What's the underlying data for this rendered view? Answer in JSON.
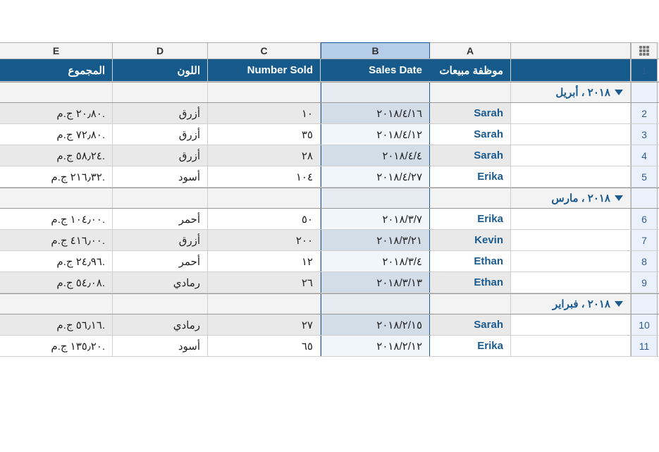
{
  "columns": {
    "letters": [
      "E",
      "D",
      "C",
      "B",
      "A"
    ],
    "selected": "B",
    "widths": {
      "rownum": 38,
      "group": 170,
      "A": 115,
      "B": 155,
      "C": 160,
      "D": 135,
      "E": 160
    }
  },
  "headers": {
    "A": "موظفة مبيعات",
    "B": "Sales Date",
    "C": "Number Sold",
    "D": "اللون",
    "E": "المجموع"
  },
  "colors": {
    "header_bg": "#155a8a",
    "header_text": "#ffffff",
    "selected_col_bg": "#b5cde8",
    "selected_col_border": "#1b5a96",
    "row_num_text": "#2d5c8f",
    "row_num_bg": "#eaf1fa",
    "group_text": "#1a5a8f",
    "group_bg": "#f3f3f3",
    "data_link": "#1a5a8f",
    "even_row_bg": "#e9e9e9",
    "border": "#d0d0d0"
  },
  "groups": [
    {
      "label": "٢٠١٨ ، أبريل",
      "expanded": true,
      "rows": [
        {
          "n": "2",
          "A": "Sarah",
          "B": "٢٠١٨/٤/١٦",
          "C": "١٠",
          "D": "أزرق",
          "E": "٢٠٫٨٠ ج.م.",
          "even": true
        },
        {
          "n": "3",
          "A": "Sarah",
          "B": "٢٠١٨/٤/١٢",
          "C": "٣٥",
          "D": "أزرق",
          "E": "٧٢٫٨٠ ج.م.",
          "even": false
        },
        {
          "n": "4",
          "A": "Sarah",
          "B": "٢٠١٨/٤/٤",
          "C": "٢٨",
          "D": "أزرق",
          "E": "٥٨٫٢٤ ج.م.",
          "even": true
        },
        {
          "n": "5",
          "A": "Erika",
          "B": "٢٠١٨/٤/٢٧",
          "C": "١٠٤",
          "D": "أسود",
          "E": "٢١٦٫٣٢ ج.م.",
          "even": false
        }
      ]
    },
    {
      "label": "٢٠١٨ ، مارس",
      "expanded": true,
      "rows": [
        {
          "n": "6",
          "A": "Erika",
          "B": "٢٠١٨/٣/٧",
          "C": "٥٠",
          "D": "أحمر",
          "E": "١٠٤٫٠٠ ج.م.",
          "even": false
        },
        {
          "n": "7",
          "A": "Kevin",
          "B": "٢٠١٨/٣/٢١",
          "C": "٢٠٠",
          "D": "أزرق",
          "E": "٤١٦٫٠٠ ج.م.",
          "even": true
        },
        {
          "n": "8",
          "A": "Ethan",
          "B": "٢٠١٨/٣/٤",
          "C": "١٢",
          "D": "أحمر",
          "E": "٢٤٫٩٦ ج.م.",
          "even": false
        },
        {
          "n": "9",
          "A": "Ethan",
          "B": "٢٠١٨/٣/١٣",
          "C": "٢٦",
          "D": "رمادي",
          "E": "٥٤٫٠٨ ج.م.",
          "even": true
        }
      ]
    },
    {
      "label": "٢٠١٨ ، فبراير",
      "expanded": true,
      "rows": [
        {
          "n": "10",
          "A": "Sarah",
          "B": "٢٠١٨/٢/١٥",
          "C": "٢٧",
          "D": "رمادي",
          "E": "٥٦٫١٦ ج.م.",
          "even": true
        },
        {
          "n": "11",
          "A": "Erika",
          "B": "٢٠١٨/٢/١٢",
          "C": "٦٥",
          "D": "أسود",
          "E": "١٣٥٫٢٠ ج.م.",
          "even": false
        }
      ]
    }
  ],
  "header_row_number": "1"
}
